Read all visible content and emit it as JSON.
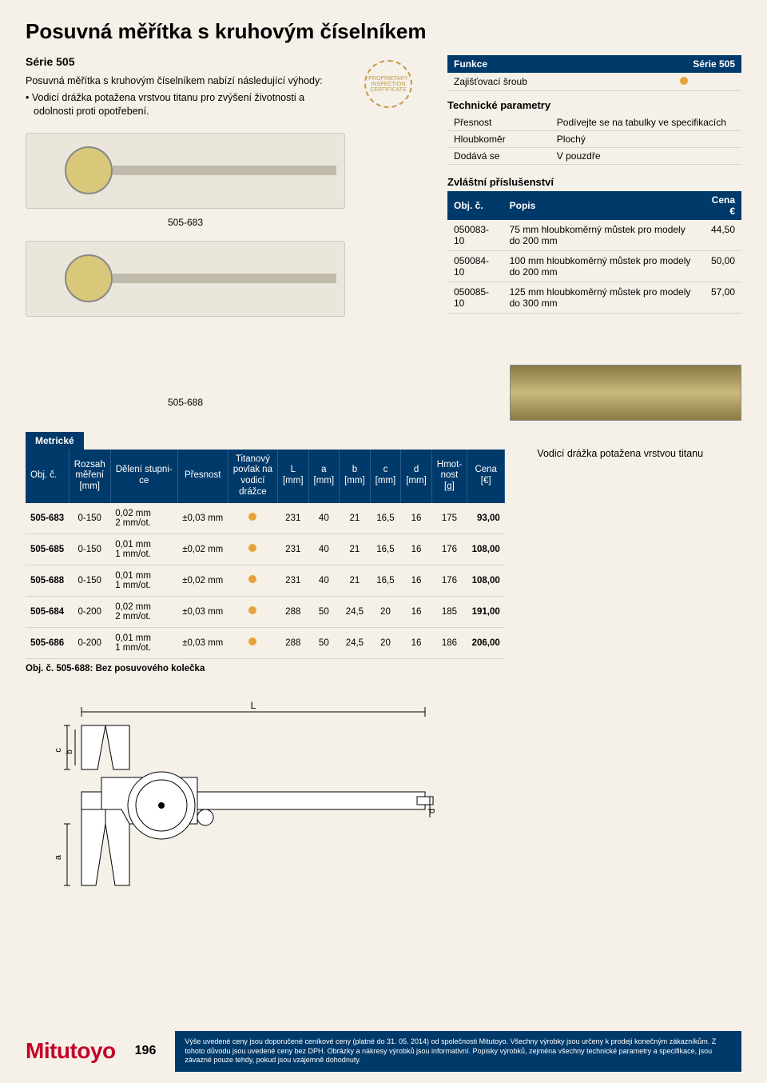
{
  "title": "Posuvná měřítka s kruhovým číselníkem",
  "series_label": "Série 505",
  "intro_text": "Posuvná měřítka s kruhovým číselníkem nabízí následující výhody:",
  "intro_bullets": [
    "Vodicí drážka potažena vrstvou titanu pro zvýšení životnosti a odolnosti proti opotřebení."
  ],
  "product_img1_label": "505-683",
  "product_img2_label": "505-688",
  "cert_badge_text": "PROPRIETARY INSPECTION CERTIFICATE",
  "funkce": {
    "header_left": "Funkce",
    "header_right": "Série 505",
    "rows": [
      {
        "label": "Zajišťovací šroub",
        "value_dot": true
      }
    ]
  },
  "tech_params": {
    "heading": "Technické parametry",
    "rows": [
      {
        "k": "Přesnost",
        "v": "Podívejte se na tabulky ve specifikacích"
      },
      {
        "k": "Hloubkoměr",
        "v": "Plochý"
      },
      {
        "k": "Dodává se",
        "v": "V pouzdře"
      }
    ]
  },
  "accessories": {
    "heading": "Zvláštní příslušenství",
    "cols": [
      "Obj. č.",
      "Popis",
      "Cena €"
    ],
    "rows": [
      {
        "code": "050083-10",
        "desc": "75 mm hloubkoměrný můstek pro modely do 200 mm",
        "price": "44,50"
      },
      {
        "code": "050084-10",
        "desc": "100 mm hloubkoměrný můstek pro modely do 200 mm",
        "price": "50,00"
      },
      {
        "code": "050085-10",
        "desc": "125 mm hloubkoměrný můstek pro modely do 300 mm",
        "price": "57,00"
      }
    ]
  },
  "titanium_caption": "Vodicí drážka potažena vrstvou titanu",
  "metric_label": "Metrické",
  "main_table": {
    "headers": [
      "Obj. č.",
      "Rozsah\nměření\n[mm]",
      "Dělení stupni-\nce",
      "Přesnost",
      "Titanový\npovlak na\nvodicí\ndrážce",
      "L\n[mm]",
      "a\n[mm]",
      "b\n[mm]",
      "c\n[mm]",
      "d\n[mm]",
      "Hmot-\nnost\n[g]",
      "Cena\n[€]"
    ],
    "rows": [
      {
        "code": "505-683",
        "range": "0-150",
        "grad": "0,02 mm\n2 mm/ot.",
        "acc": "±0,03 mm",
        "L": "231",
        "a": "40",
        "b": "21",
        "c": "16,5",
        "d": "16",
        "mass": "175",
        "price": "93,00"
      },
      {
        "code": "505-685",
        "range": "0-150",
        "grad": "0,01 mm\n1 mm/ot.",
        "acc": "±0,02 mm",
        "L": "231",
        "a": "40",
        "b": "21",
        "c": "16,5",
        "d": "16",
        "mass": "176",
        "price": "108,00"
      },
      {
        "code": "505-688",
        "range": "0-150",
        "grad": "0,01 mm\n1 mm/ot.",
        "acc": "±0,02 mm",
        "L": "231",
        "a": "40",
        "b": "21",
        "c": "16,5",
        "d": "16",
        "mass": "176",
        "price": "108,00"
      },
      {
        "code": "505-684",
        "range": "0-200",
        "grad": "0,02 mm\n2 mm/ot.",
        "acc": "±0,03 mm",
        "L": "288",
        "a": "50",
        "b": "24,5",
        "c": "20",
        "d": "16",
        "mass": "185",
        "price": "191,00"
      },
      {
        "code": "505-686",
        "range": "0-200",
        "grad": "0,01 mm\n1 mm/ot.",
        "acc": "±0,03 mm",
        "L": "288",
        "a": "50",
        "b": "24,5",
        "c": "20",
        "d": "16",
        "mass": "186",
        "price": "206,00"
      }
    ],
    "note": "Obj. č. 505-688: Bez posuvového kolečka"
  },
  "drawing_labels": {
    "L": "L",
    "a": "a",
    "b": "b",
    "c": "c",
    "d": "d"
  },
  "footer": {
    "logo": "Mitutoyo",
    "page": "196",
    "disclaimer": "Výše uvedené ceny jsou doporučené ceníkové ceny (platné do 31. 05. 2014) od společnosti Mitutoyo. Všechny výrobky jsou určeny k prodeji konečným zákazníkům. Z tohoto důvodu jsou uvedené ceny bez DPH. Obrázky a nákresy výrobků jsou informativní. Popisky výrobků, zejména všechny technické parametry a specifikace, jsou závazné pouze tehdy, pokud jsou vzájemně dohodnuty."
  },
  "colors": {
    "navy": "#003a6a",
    "bg": "#f5f1e8",
    "orange": "#e8a23a",
    "red": "#c4002a"
  }
}
